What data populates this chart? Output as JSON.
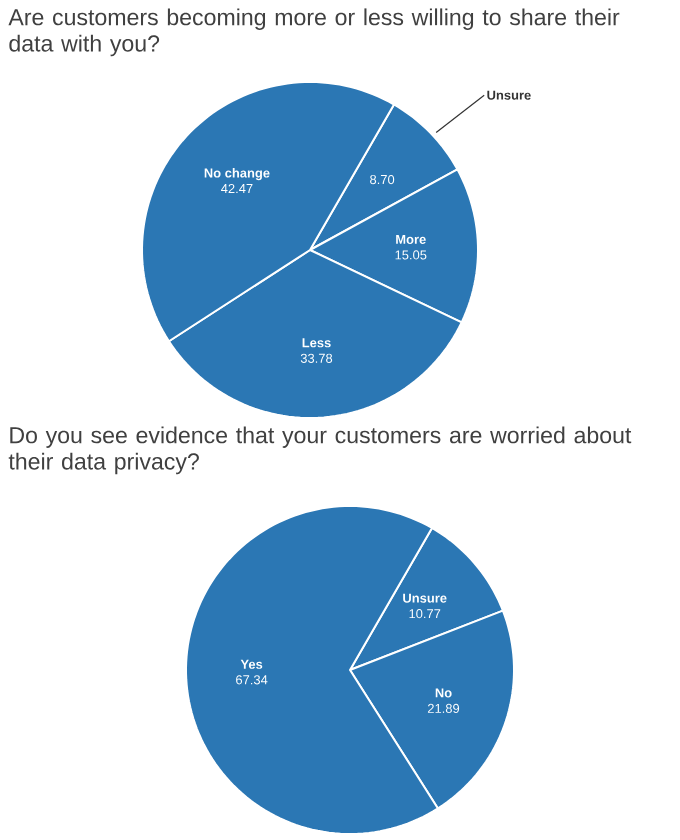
{
  "chart_data": [
    {
      "type": "pie",
      "title": "Are customers becoming more or less willing to share their data with you?",
      "categories": [
        "Unsure",
        "More",
        "Less",
        "No change"
      ],
      "values": [
        8.7,
        15.05,
        33.78,
        42.47
      ],
      "value_labels": [
        "8.70",
        "15.05",
        "33.78",
        "42.47"
      ],
      "colors": [
        "#2b77b4",
        "#2b77b4",
        "#2b77b4",
        "#2b77b4"
      ]
    },
    {
      "type": "pie",
      "title": "Do you see evidence that your customers are worried about their data privacy?",
      "categories": [
        "Unsure",
        "No",
        "Yes"
      ],
      "values": [
        10.77,
        21.89,
        67.34
      ],
      "value_labels": [
        "10.77",
        "21.89",
        "67.34"
      ],
      "colors": [
        "#2b77b4",
        "#2b77b4",
        "#2b77b4"
      ]
    }
  ]
}
